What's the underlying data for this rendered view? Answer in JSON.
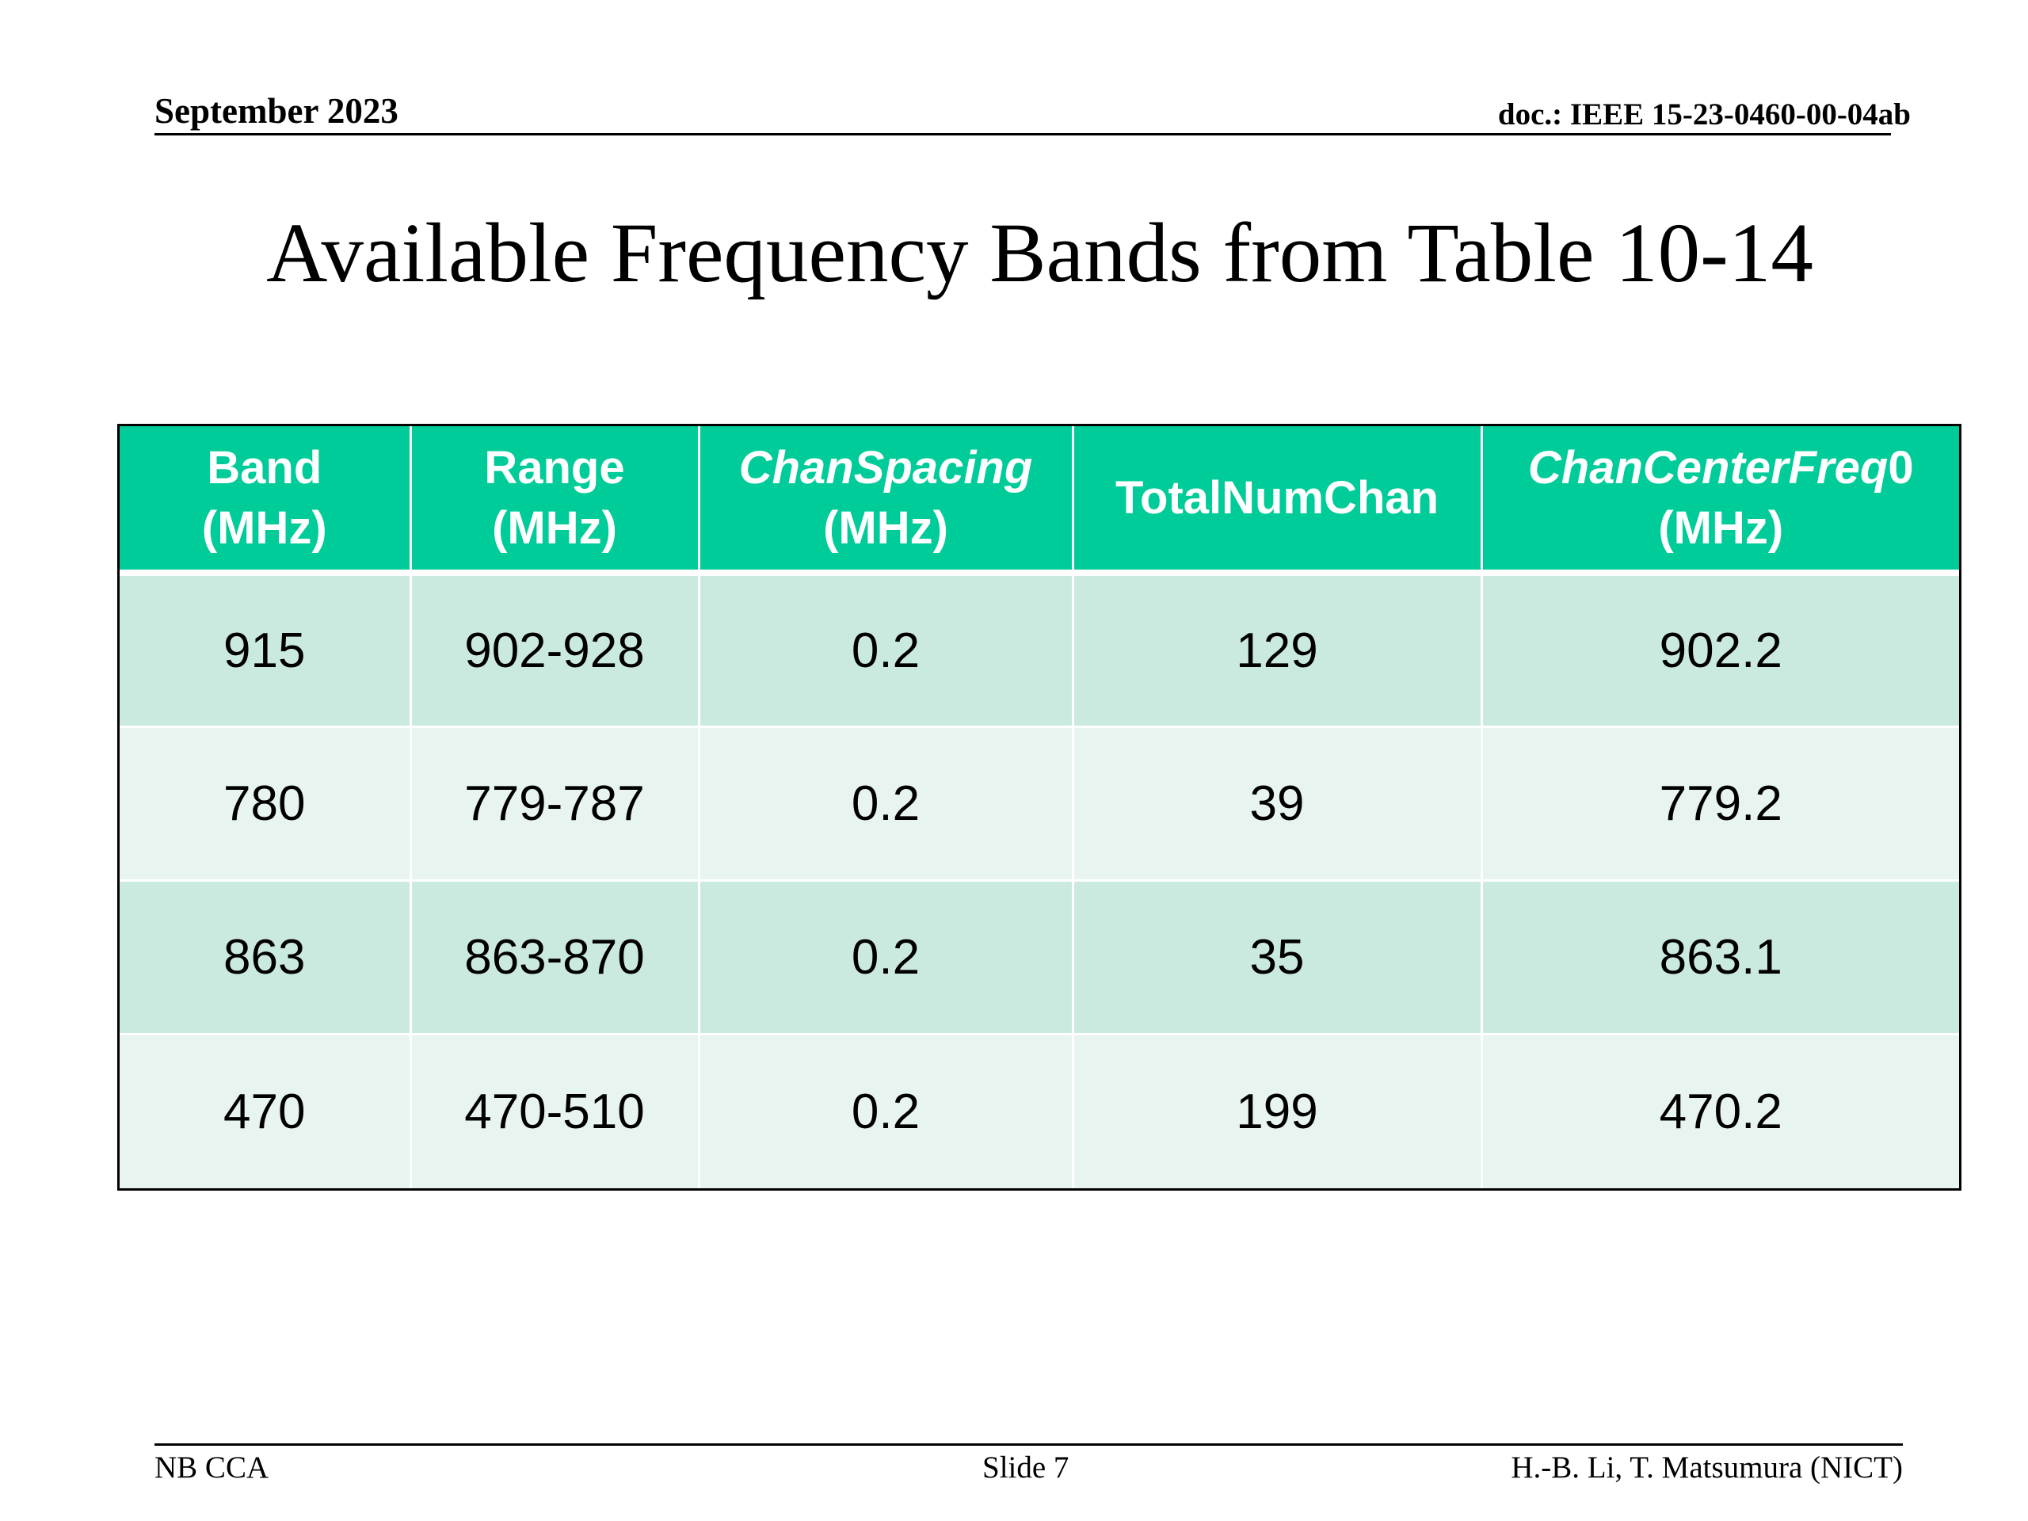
{
  "header": {
    "date": "September 2023",
    "doc_id": "doc.: IEEE 15-23-0460-00-04ab"
  },
  "title": "Available Frequency Bands from Table 10-14",
  "table": {
    "columns": [
      {
        "line1": "Band",
        "line2": "(MHz)",
        "italic_line1": false
      },
      {
        "line1": "Range",
        "line2": "(MHz)",
        "italic_line1": false
      },
      {
        "line1": "ChanSpacing",
        "line2": "(MHz)",
        "italic_line1": true
      },
      {
        "line1": "TotalNumChan",
        "line2": "",
        "italic_line1": false
      },
      {
        "line1_italic": "ChanCenterFreq",
        "line1_suffix": "0",
        "line2": "(MHz)"
      }
    ],
    "rows": [
      [
        "915",
        "902-928",
        "0.2",
        "129",
        "902.2"
      ],
      [
        "780",
        "779-787",
        "0.2",
        "39",
        "779.2"
      ],
      [
        "863",
        "863-870",
        "0.2",
        "35",
        "863.1"
      ],
      [
        "470",
        "470-510",
        "0.2",
        "199",
        "470.2"
      ]
    ],
    "colors": {
      "header_bg": "#00cc99",
      "header_text": "#ffffff",
      "row_odd_bg": "#cbeadf",
      "row_even_bg": "#e7f4ef"
    }
  },
  "footer": {
    "left": "NB CCA",
    "center": "Slide 7",
    "right": "H.-B. Li, T. Matsumura (NICT)"
  }
}
